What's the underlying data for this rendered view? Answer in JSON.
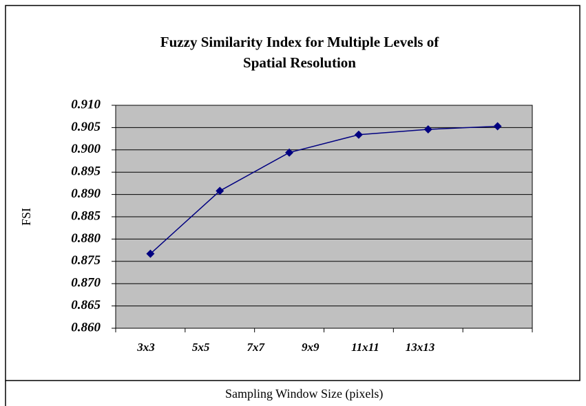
{
  "chart_data": {
    "type": "line",
    "title": "Fuzzy Similarity Index for Multiple Levels of Spatial Resolution",
    "x_label": "Sampling Window Size (pixels)",
    "y_label": "FSI",
    "categories": [
      "3x3",
      "5x5",
      "7x7",
      "9x9",
      "11x11",
      "13x13"
    ],
    "series": [
      {
        "name": "FSI",
        "color": "#000080",
        "values": [
          0.8767,
          0.8908,
          0.8994,
          0.9034,
          0.9046,
          0.9053
        ]
      }
    ],
    "ylim": [
      0.86,
      0.91
    ],
    "yticks": [
      {
        "value": 0.86,
        "label": "0.860"
      },
      {
        "value": 0.865,
        "label": "0.865"
      },
      {
        "value": 0.87,
        "label": "0.870"
      },
      {
        "value": 0.875,
        "label": "0.875"
      },
      {
        "value": 0.88,
        "label": "0.880"
      },
      {
        "value": 0.885,
        "label": "0.885"
      },
      {
        "value": 0.89,
        "label": "0.890"
      },
      {
        "value": 0.895,
        "label": "0.895"
      },
      {
        "value": 0.9,
        "label": "0.900"
      },
      {
        "value": 0.905,
        "label": "0.905"
      },
      {
        "value": 0.91,
        "label": "0.910"
      }
    ],
    "grid": true,
    "plot_background": "#c0c0c0"
  }
}
